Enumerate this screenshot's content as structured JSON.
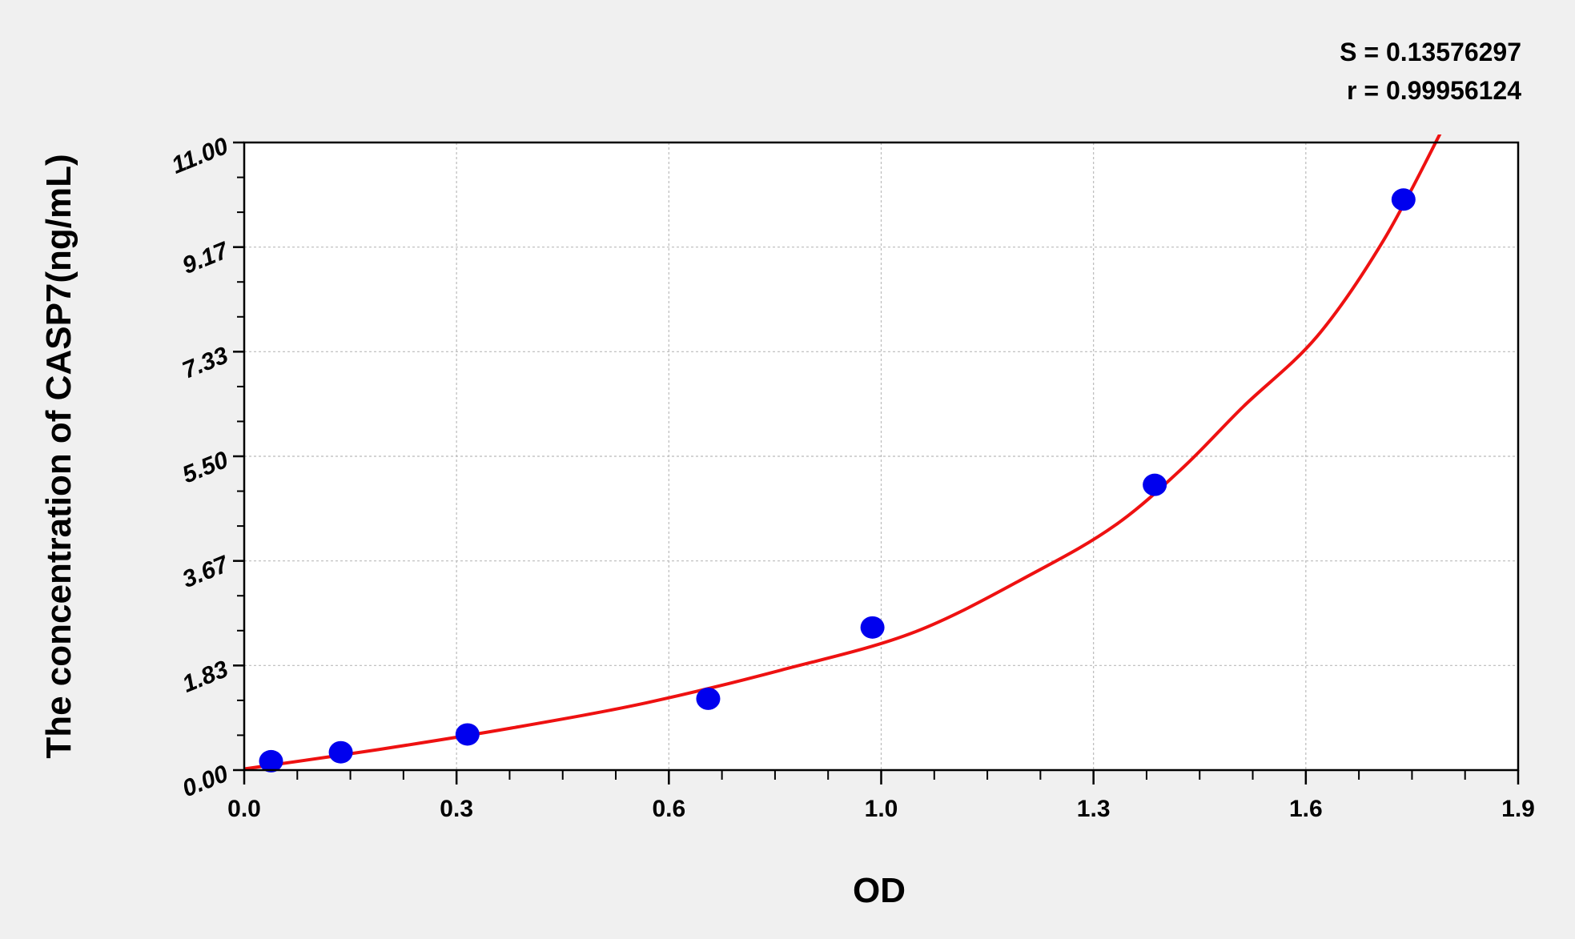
{
  "chart_data": {
    "type": "scatter",
    "stats": [
      "S = 0.13576297",
      "r = 0.99956124"
    ],
    "xlabel": "OD",
    "ylabel": "The concentration of CASP7(ng/mL)",
    "xlim": [
      0,
      1.9
    ],
    "ylim": [
      0,
      11
    ],
    "xticks": [
      "0.0",
      "0.3",
      "0.6",
      "1.0",
      "1.3",
      "1.6",
      "1.9"
    ],
    "yticks": [
      "0.00",
      "1.83",
      "3.67",
      "5.50",
      "7.33",
      "9.17",
      "11.00"
    ],
    "grid": true,
    "points": [
      {
        "x": 0.04,
        "y": 0.156
      },
      {
        "x": 0.144,
        "y": 0.3125
      },
      {
        "x": 0.333,
        "y": 0.625
      },
      {
        "x": 0.692,
        "y": 1.25
      },
      {
        "x": 0.937,
        "y": 2.5
      },
      {
        "x": 1.358,
        "y": 5.0
      },
      {
        "x": 1.729,
        "y": 10.0
      }
    ],
    "fit_curve": [
      {
        "x": 0.0,
        "y": 0.02
      },
      {
        "x": 0.2,
        "y": 0.36
      },
      {
        "x": 0.4,
        "y": 0.74
      },
      {
        "x": 0.6,
        "y": 1.18
      },
      {
        "x": 0.8,
        "y": 1.75
      },
      {
        "x": 1.0,
        "y": 2.42
      },
      {
        "x": 1.18,
        "y": 3.47
      },
      {
        "x": 1.3,
        "y": 4.3
      },
      {
        "x": 1.4,
        "y": 5.3
      },
      {
        "x": 1.49,
        "y": 6.37
      },
      {
        "x": 1.6,
        "y": 7.6
      },
      {
        "x": 1.7,
        "y": 9.3
      },
      {
        "x": 1.79,
        "y": 11.3
      }
    ],
    "colors": {
      "points": "#0000ee",
      "curve": "#ee1111",
      "grid": "#bbbbbb",
      "background": "#f0f0f0",
      "plot": "#ffffff"
    }
  }
}
